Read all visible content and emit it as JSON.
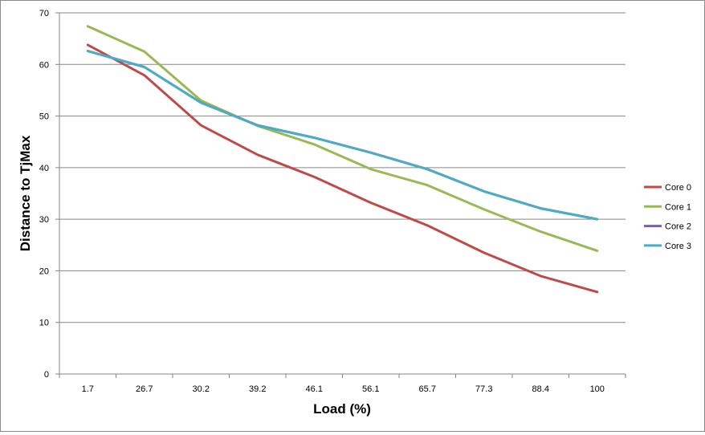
{
  "chart_data": {
    "type": "line",
    "title": "",
    "xlabel": "Load (%)",
    "ylabel": "Distance to TjMax",
    "categories": [
      "1.7",
      "26.7",
      "30.2",
      "39.2",
      "46.1",
      "56.1",
      "65.7",
      "77.3",
      "88.4",
      "100"
    ],
    "ylim": [
      0,
      70
    ],
    "yticks": [
      0,
      10,
      20,
      30,
      40,
      50,
      60,
      70
    ],
    "grid": "horizontal",
    "legend_position": "right",
    "series": [
      {
        "name": "Core 0",
        "color": "#be4b48",
        "values": [
          63.8,
          57.9,
          48.2,
          42.5,
          38.2,
          33.2,
          28.8,
          23.5,
          19.0,
          15.9
        ]
      },
      {
        "name": "Core 1",
        "color": "#98b954",
        "values": [
          67.4,
          62.5,
          53.0,
          48.1,
          44.5,
          39.7,
          36.6,
          31.9,
          27.6,
          23.9
        ]
      },
      {
        "name": "Core 2",
        "color": "#7d60a0",
        "values": [
          62.6,
          59.5,
          52.6,
          48.2,
          45.8,
          42.9,
          39.7,
          35.4,
          32.1,
          30.0
        ]
      },
      {
        "name": "Core 3",
        "color": "#4bacc6",
        "values": [
          62.6,
          59.5,
          52.6,
          48.2,
          45.8,
          42.9,
          39.7,
          35.4,
          32.1,
          30.0
        ]
      }
    ]
  }
}
